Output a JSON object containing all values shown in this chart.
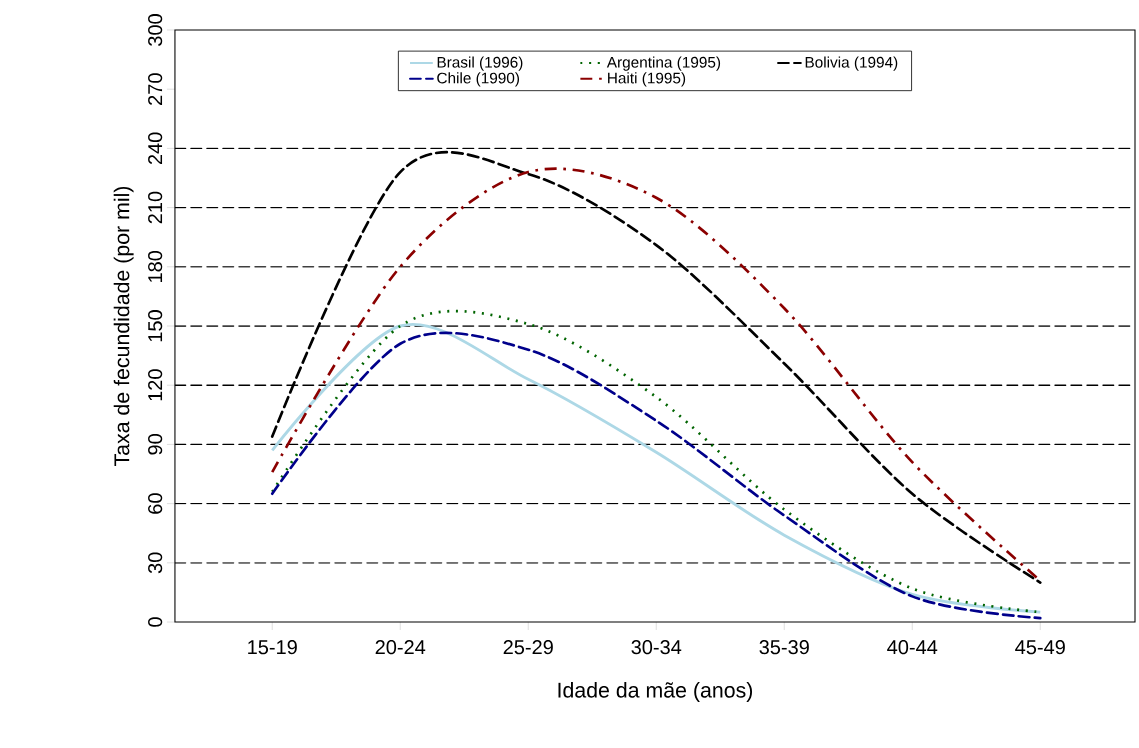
{
  "chart_data": {
    "type": "line",
    "xlabel": "Idade da mãe (anos)",
    "ylabel": "Taxa de fecundidade (por mil)",
    "categories": [
      "15-19",
      "20-24",
      "25-29",
      "30-34",
      "35-39",
      "40-44",
      "45-49"
    ],
    "ylim": [
      0,
      300
    ],
    "yticks": [
      0,
      30,
      60,
      90,
      120,
      150,
      180,
      210,
      240,
      270,
      300
    ],
    "legend": "top",
    "ref_lines": [
      {
        "axis": "y",
        "value": 30,
        "line_style": "dashed",
        "color": "#000000"
      },
      {
        "axis": "y",
        "value": 60,
        "line_style": "dashed",
        "color": "#000000"
      },
      {
        "axis": "y",
        "value": 90,
        "line_style": "dashed",
        "color": "#000000"
      },
      {
        "axis": "y",
        "value": 120,
        "line_style": "dashed",
        "color": "#000000"
      },
      {
        "axis": "y",
        "value": 150,
        "line_style": "dashed",
        "color": "#000000"
      },
      {
        "axis": "y",
        "value": 180,
        "line_style": "dashed",
        "color": "#000000"
      },
      {
        "axis": "y",
        "value": 210,
        "line_style": "dashed",
        "color": "#000000"
      },
      {
        "axis": "y",
        "value": 240,
        "line_style": "dashed",
        "color": "#000000"
      }
    ],
    "series": [
      {
        "name": "Brasil (1996)",
        "color": "#add8e6",
        "line_style": "solid",
        "values": [
          87,
          150,
          123,
          86,
          44,
          14,
          5
        ]
      },
      {
        "name": "Argentina (1995)",
        "color": "#006400",
        "line_style": "dotted",
        "values": [
          66,
          150,
          151,
          114,
          57,
          17,
          5
        ]
      },
      {
        "name": "Bolivia (1994)",
        "color": "#000000",
        "line_style": "dashed",
        "values": [
          94,
          228,
          227,
          191,
          131,
          65,
          20
        ]
      },
      {
        "name": "Chile (1990)",
        "color": "#00008b",
        "line_style": "dashed",
        "values": [
          65,
          141,
          138,
          102,
          54,
          13,
          2
        ]
      },
      {
        "name": "Haiti (1995)",
        "color": "#8b0000",
        "line_style": "dashdot",
        "values": [
          76,
          180,
          228,
          215,
          159,
          81,
          21
        ]
      }
    ]
  }
}
